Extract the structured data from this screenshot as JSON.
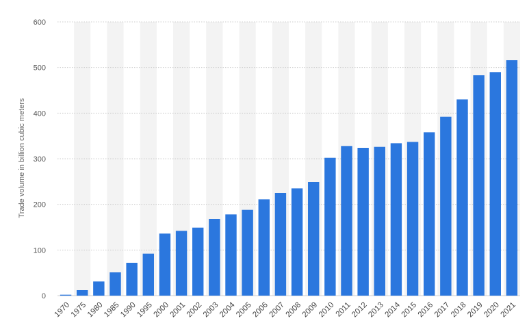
{
  "chart_data": {
    "type": "bar",
    "title": "",
    "xlabel": "",
    "ylabel": "Trade volume in billion cubic meters",
    "ylim": [
      0,
      600
    ],
    "yticks": [
      0,
      100,
      200,
      300,
      400,
      500,
      600
    ],
    "grid": true,
    "categories": [
      "1970",
      "1975",
      "1980",
      "1985",
      "1990",
      "1995",
      "2000",
      "2001",
      "2002",
      "2003",
      "2004",
      "2005",
      "2006",
      "2007",
      "2008",
      "2009",
      "2010",
      "2011",
      "2012",
      "2013",
      "2014",
      "2015",
      "2016",
      "2017",
      "2018",
      "2019",
      "2020",
      "2021"
    ],
    "values": [
      2,
      12,
      31,
      51,
      72,
      92,
      136,
      142,
      149,
      168,
      178,
      188,
      211,
      225,
      235,
      249,
      302,
      328,
      324,
      326,
      334,
      337,
      358,
      392,
      430,
      483,
      490,
      516
    ],
    "colors": {
      "bar": "#2b77de",
      "band": "#f3f3f3",
      "grid": "#cccccc"
    }
  }
}
